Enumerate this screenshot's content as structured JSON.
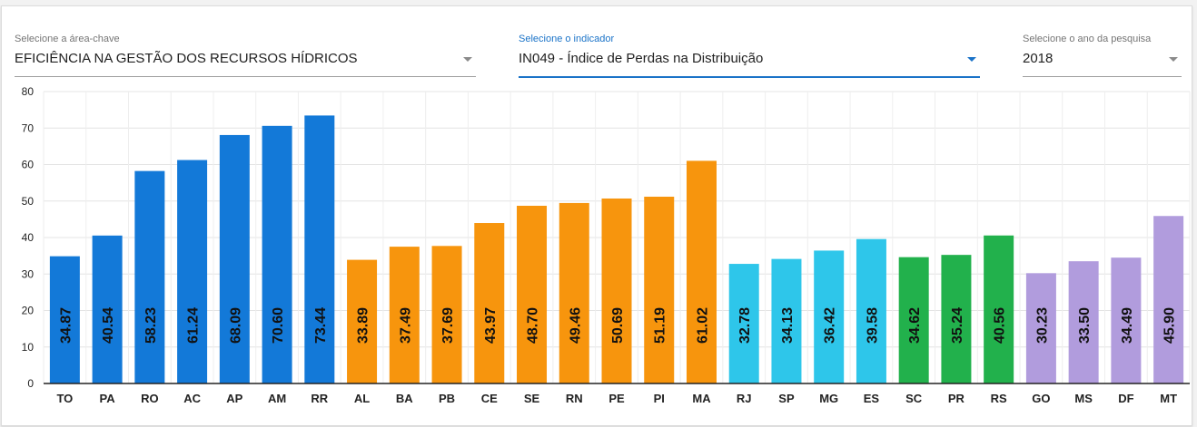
{
  "filters": [
    {
      "label": "Selecione a área-chave",
      "value": "EFICIÊNCIA NA GESTÃO DOS RECURSOS HÍDRICOS",
      "active": false
    },
    {
      "label": "Selecione o indicador",
      "value": "IN049 - Índice de Perdas na Distribuição",
      "active": true
    },
    {
      "label": "Selecione o ano da pesquisa",
      "value": "2018",
      "active": false
    }
  ],
  "chart_data": {
    "type": "bar",
    "title": "",
    "xlabel": "",
    "ylabel": "",
    "ylim": [
      0,
      80
    ],
    "yticks": [
      0,
      10,
      20,
      30,
      40,
      50,
      60,
      70,
      80
    ],
    "grid": true,
    "categories": [
      "TO",
      "PA",
      "RO",
      "AC",
      "AP",
      "AM",
      "RR",
      "AL",
      "BA",
      "PB",
      "CE",
      "SE",
      "RN",
      "PE",
      "PI",
      "MA",
      "RJ",
      "SP",
      "MG",
      "ES",
      "SC",
      "PR",
      "RS",
      "GO",
      "MS",
      "DF",
      "MT"
    ],
    "values": [
      34.87,
      40.54,
      58.23,
      61.24,
      68.09,
      70.6,
      73.44,
      33.89,
      37.49,
      37.69,
      43.97,
      48.7,
      49.46,
      50.69,
      51.19,
      61.02,
      32.78,
      34.13,
      36.42,
      39.58,
      34.62,
      35.24,
      40.56,
      30.23,
      33.5,
      34.49,
      45.9
    ],
    "value_labels": [
      "34.87",
      "40.54",
      "58.23",
      "61.24",
      "68.09",
      "70.60",
      "73.44",
      "33.89",
      "37.49",
      "37.69",
      "43.97",
      "48.70",
      "49.46",
      "50.69",
      "51.19",
      "61.02",
      "32.78",
      "34.13",
      "36.42",
      "39.58",
      "34.62",
      "35.24",
      "40.56",
      "30.23",
      "33.50",
      "34.49",
      "45.90"
    ],
    "colors": [
      "#1379d8",
      "#1379d8",
      "#1379d8",
      "#1379d8",
      "#1379d8",
      "#1379d8",
      "#1379d8",
      "#f7950d",
      "#f7950d",
      "#f7950d",
      "#f7950d",
      "#f7950d",
      "#f7950d",
      "#f7950d",
      "#f7950d",
      "#f7950d",
      "#2ec6ea",
      "#2ec6ea",
      "#2ec6ea",
      "#2ec6ea",
      "#22b14c",
      "#22b14c",
      "#22b14c",
      "#b19cdd",
      "#b19cdd",
      "#b19cdd",
      "#b19cdd"
    ],
    "legend": "none"
  }
}
